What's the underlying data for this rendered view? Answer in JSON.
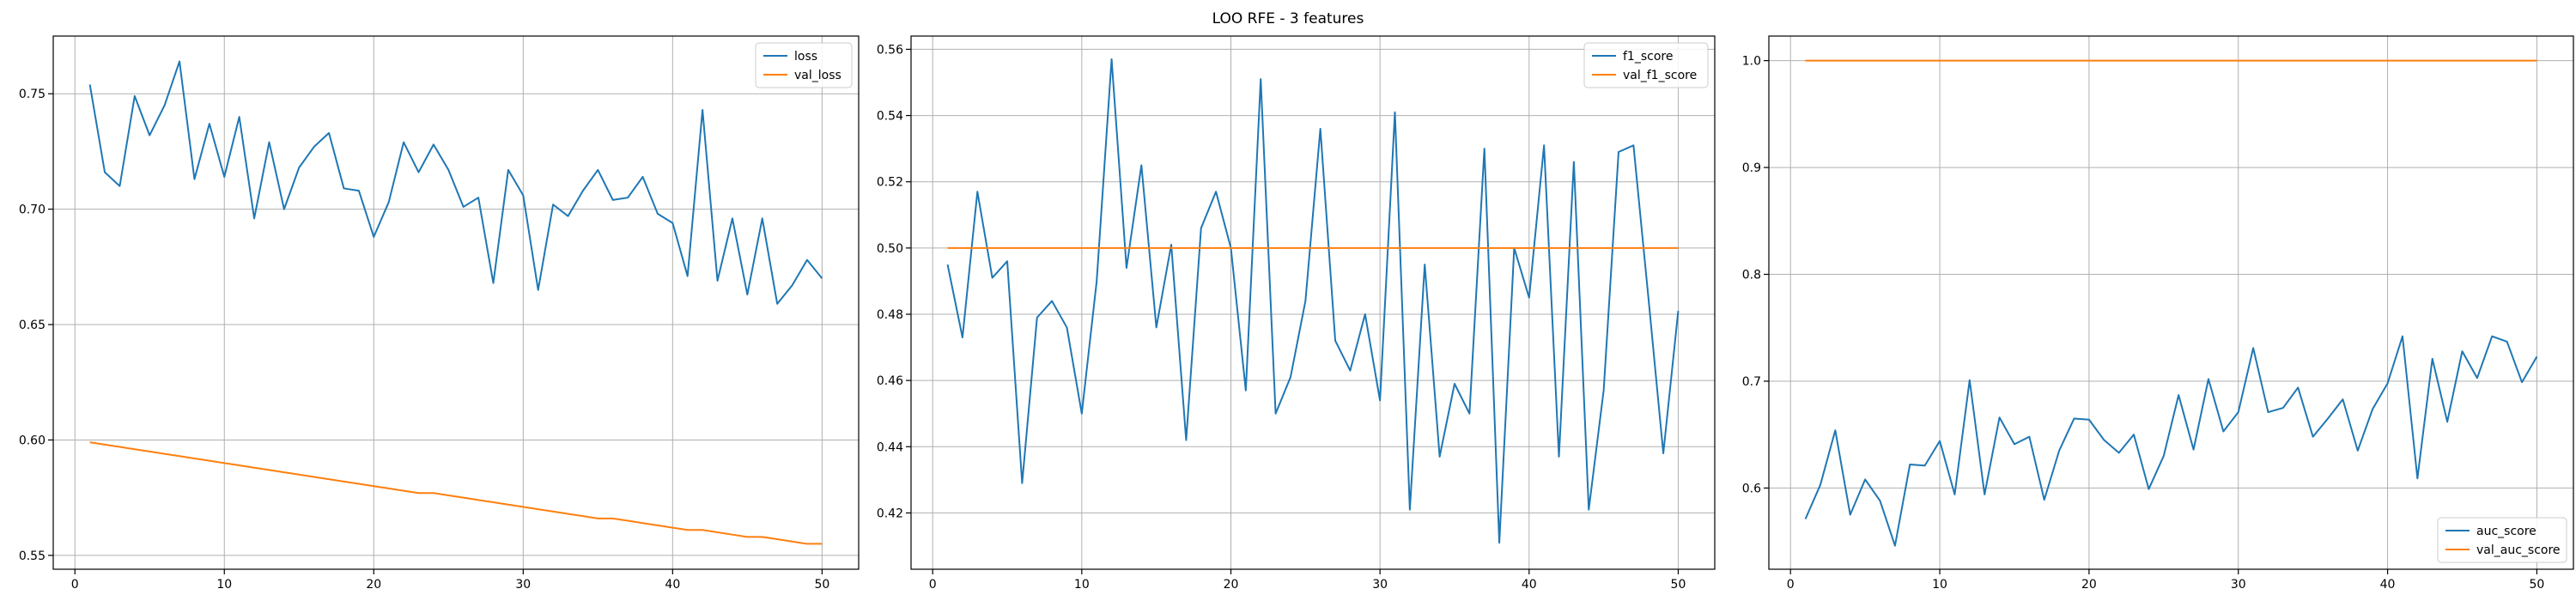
{
  "figure": {
    "title": "LOO RFE - 3 features"
  },
  "colors": {
    "series1": "#1f77b4",
    "series2": "#ff7f0e",
    "grid": "#b0b0b0",
    "axes": "#000000"
  },
  "chart_data": [
    {
      "type": "line",
      "title": "",
      "xlabel": "",
      "ylabel": "",
      "xlim": [
        -1.45,
        52.45
      ],
      "ylim": [
        0.544,
        0.775
      ],
      "x_ticks": [
        0,
        10,
        20,
        30,
        40,
        50
      ],
      "y_ticks": [
        0.55,
        0.6,
        0.65,
        0.7,
        0.75
      ],
      "y_tick_labels": [
        "0.55",
        "0.60",
        "0.65",
        "0.70",
        "0.75"
      ],
      "grid": true,
      "legend_position": "top-right",
      "x": [
        1,
        2,
        3,
        4,
        5,
        6,
        7,
        8,
        9,
        10,
        11,
        12,
        13,
        14,
        15,
        16,
        17,
        18,
        19,
        20,
        21,
        22,
        23,
        24,
        25,
        26,
        27,
        28,
        29,
        30,
        31,
        32,
        33,
        34,
        35,
        36,
        37,
        38,
        39,
        40,
        41,
        42,
        43,
        44,
        45,
        46,
        47,
        48,
        49,
        50
      ],
      "series": [
        {
          "name": "loss",
          "color": "#1f77b4",
          "values": [
            0.754,
            0.716,
            0.71,
            0.749,
            0.732,
            0.745,
            0.764,
            0.713,
            0.737,
            0.714,
            0.74,
            0.696,
            0.729,
            0.7,
            0.718,
            0.727,
            0.733,
            0.709,
            0.708,
            0.688,
            0.703,
            0.729,
            0.716,
            0.728,
            0.717,
            0.701,
            0.705,
            0.668,
            0.717,
            0.706,
            0.665,
            0.702,
            0.697,
            0.708,
            0.717,
            0.704,
            0.705,
            0.714,
            0.698,
            0.694,
            0.671,
            0.743,
            0.669,
            0.696,
            0.663,
            0.696,
            0.659,
            0.667,
            0.678,
            0.67
          ]
        },
        {
          "name": "val_loss",
          "color": "#ff7f0e",
          "values": [
            0.599,
            0.598,
            0.597,
            0.596,
            0.595,
            0.594,
            0.593,
            0.592,
            0.591,
            0.59,
            0.589,
            0.588,
            0.587,
            0.586,
            0.585,
            0.584,
            0.583,
            0.582,
            0.581,
            0.58,
            0.579,
            0.578,
            0.577,
            0.577,
            0.576,
            0.575,
            0.574,
            0.573,
            0.572,
            0.571,
            0.57,
            0.569,
            0.568,
            0.567,
            0.566,
            0.566,
            0.565,
            0.564,
            0.563,
            0.562,
            0.561,
            0.561,
            0.56,
            0.559,
            0.558,
            0.558,
            0.557,
            0.556,
            0.555,
            0.555
          ]
        }
      ]
    },
    {
      "type": "line",
      "title": "",
      "xlabel": "",
      "ylabel": "",
      "xlim": [
        -1.45,
        52.45
      ],
      "ylim": [
        0.403,
        0.564
      ],
      "x_ticks": [
        0,
        10,
        20,
        30,
        40,
        50
      ],
      "y_ticks": [
        0.42,
        0.44,
        0.46,
        0.48,
        0.5,
        0.52,
        0.54,
        0.56
      ],
      "y_tick_labels": [
        "0.42",
        "0.44",
        "0.46",
        "0.48",
        "0.50",
        "0.52",
        "0.54",
        "0.56"
      ],
      "grid": true,
      "legend_position": "top-right",
      "x": [
        1,
        2,
        3,
        4,
        5,
        6,
        7,
        8,
        9,
        10,
        11,
        12,
        13,
        14,
        15,
        16,
        17,
        18,
        19,
        20,
        21,
        22,
        23,
        24,
        25,
        26,
        27,
        28,
        29,
        30,
        31,
        32,
        33,
        34,
        35,
        36,
        37,
        38,
        39,
        40,
        41,
        42,
        43,
        44,
        45,
        46,
        47,
        48,
        49,
        50
      ],
      "series": [
        {
          "name": "f1_score",
          "color": "#1f77b4",
          "values": [
            0.495,
            0.473,
            0.517,
            0.491,
            0.496,
            0.429,
            0.479,
            0.484,
            0.476,
            0.45,
            0.49,
            0.557,
            0.494,
            0.525,
            0.476,
            0.501,
            0.442,
            0.506,
            0.517,
            0.5,
            0.457,
            0.551,
            0.45,
            0.461,
            0.484,
            0.536,
            0.472,
            0.463,
            0.48,
            0.454,
            0.541,
            0.421,
            0.495,
            0.437,
            0.459,
            0.45,
            0.53,
            0.411,
            0.5,
            0.485,
            0.531,
            0.437,
            0.526,
            0.421,
            0.457,
            0.529,
            0.531,
            0.485,
            0.438,
            0.481
          ]
        },
        {
          "name": "val_f1_score",
          "color": "#ff7f0e",
          "values": [
            0.5,
            0.5,
            0.5,
            0.5,
            0.5,
            0.5,
            0.5,
            0.5,
            0.5,
            0.5,
            0.5,
            0.5,
            0.5,
            0.5,
            0.5,
            0.5,
            0.5,
            0.5,
            0.5,
            0.5,
            0.5,
            0.5,
            0.5,
            0.5,
            0.5,
            0.5,
            0.5,
            0.5,
            0.5,
            0.5,
            0.5,
            0.5,
            0.5,
            0.5,
            0.5,
            0.5,
            0.5,
            0.5,
            0.5,
            0.5,
            0.5,
            0.5,
            0.5,
            0.5,
            0.5,
            0.5,
            0.5,
            0.5,
            0.5,
            0.5
          ]
        }
      ]
    },
    {
      "type": "line",
      "title": "",
      "xlabel": "",
      "ylabel": "",
      "xlim": [
        -1.45,
        52.45
      ],
      "ylim": [
        0.524,
        1.023
      ],
      "x_ticks": [
        0,
        10,
        20,
        30,
        40,
        50
      ],
      "y_ticks": [
        0.6,
        0.7,
        0.8,
        0.9,
        1.0
      ],
      "y_tick_labels": [
        "0.6",
        "0.7",
        "0.8",
        "0.9",
        "1.0"
      ],
      "grid": true,
      "legend_position": "bottom-right",
      "x": [
        1,
        2,
        3,
        4,
        5,
        6,
        7,
        8,
        9,
        10,
        11,
        12,
        13,
        14,
        15,
        16,
        17,
        18,
        19,
        20,
        21,
        22,
        23,
        24,
        25,
        26,
        27,
        28,
        29,
        30,
        31,
        32,
        33,
        34,
        35,
        36,
        37,
        38,
        39,
        40,
        41,
        42,
        43,
        44,
        45,
        46,
        47,
        48,
        49,
        50
      ],
      "series": [
        {
          "name": "auc_score",
          "color": "#1f77b4",
          "values": [
            0.571,
            0.603,
            0.654,
            0.575,
            0.608,
            0.588,
            0.546,
            0.622,
            0.621,
            0.644,
            0.594,
            0.701,
            0.594,
            0.666,
            0.641,
            0.648,
            0.589,
            0.635,
            0.665,
            0.664,
            0.645,
            0.633,
            0.65,
            0.599,
            0.63,
            0.687,
            0.636,
            0.702,
            0.653,
            0.671,
            0.731,
            0.671,
            0.675,
            0.694,
            0.648,
            0.665,
            0.683,
            0.635,
            0.674,
            0.698,
            0.742,
            0.609,
            0.721,
            0.662,
            0.728,
            0.703,
            0.742,
            0.737,
            0.699,
            0.723
          ]
        },
        {
          "name": "val_auc_score",
          "color": "#ff7f0e",
          "values": [
            1.0,
            1.0,
            1.0,
            1.0,
            1.0,
            1.0,
            1.0,
            1.0,
            1.0,
            1.0,
            1.0,
            1.0,
            1.0,
            1.0,
            1.0,
            1.0,
            1.0,
            1.0,
            1.0,
            1.0,
            1.0,
            1.0,
            1.0,
            1.0,
            1.0,
            1.0,
            1.0,
            1.0,
            1.0,
            1.0,
            1.0,
            1.0,
            1.0,
            1.0,
            1.0,
            1.0,
            1.0,
            1.0,
            1.0,
            1.0,
            1.0,
            1.0,
            1.0,
            1.0,
            1.0,
            1.0,
            1.0,
            1.0,
            1.0,
            1.0
          ]
        }
      ]
    }
  ]
}
